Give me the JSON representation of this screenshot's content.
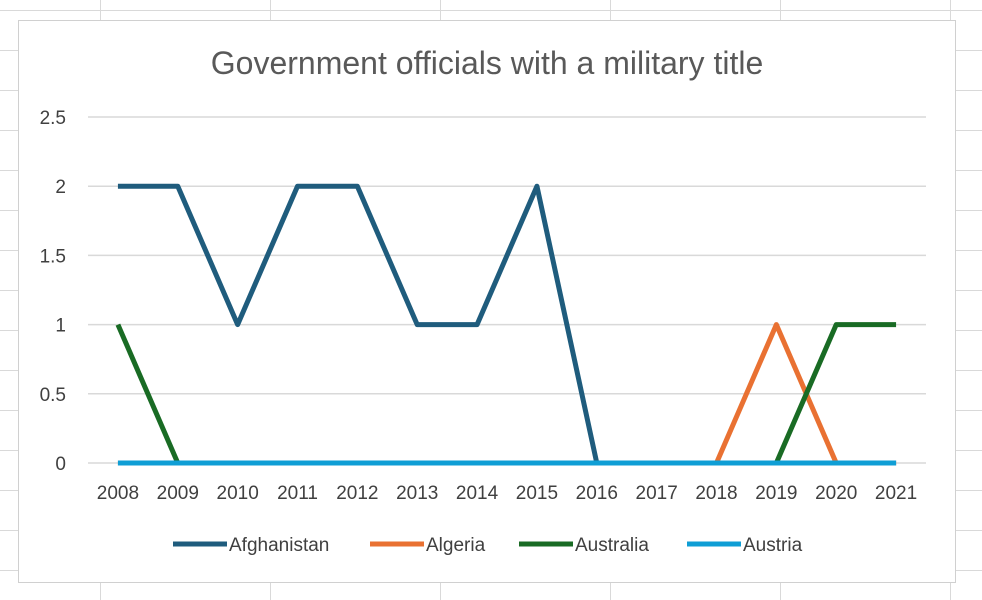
{
  "chart_data": {
    "type": "line",
    "title": "Government officials with a military title",
    "xlabel": "",
    "ylabel": "",
    "categories": [
      "2008",
      "2009",
      "2010",
      "2011",
      "2012",
      "2013",
      "2014",
      "2015",
      "2016",
      "2017",
      "2018",
      "2019",
      "2020",
      "2021"
    ],
    "ylim": [
      0,
      2.5
    ],
    "yticks": [
      "0",
      "0.5",
      "1",
      "1.5",
      "2",
      "2.5"
    ],
    "grid": true,
    "legend_position": "bottom",
    "series": [
      {
        "name": "Afghanistan",
        "color": "#1f5c7d",
        "values": [
          2,
          2,
          1,
          2,
          2,
          1,
          1,
          2,
          0,
          0,
          0,
          0,
          0,
          0
        ]
      },
      {
        "name": "Algeria",
        "color": "#e97132",
        "values": [
          0,
          0,
          0,
          0,
          0,
          0,
          0,
          0,
          0,
          0,
          0,
          1,
          0,
          0
        ]
      },
      {
        "name": "Australia",
        "color": "#196b24",
        "values": [
          1,
          0,
          0,
          0,
          0,
          0,
          0,
          0,
          0,
          0,
          0,
          0,
          1,
          1
        ]
      },
      {
        "name": "Austria",
        "color": "#0f9ed5",
        "values": [
          0,
          0,
          0,
          0,
          0,
          0,
          0,
          0,
          0,
          0,
          0,
          0,
          0,
          0
        ]
      }
    ]
  }
}
